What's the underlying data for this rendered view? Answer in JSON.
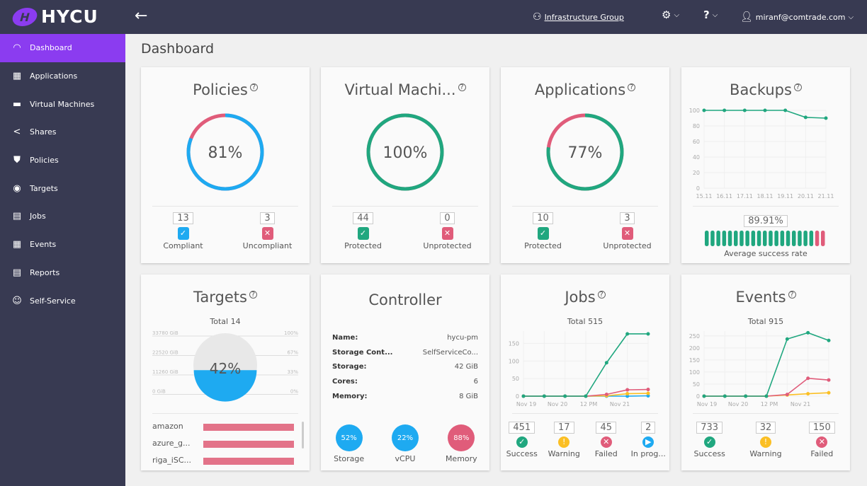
{
  "app": {
    "name": "HYCU",
    "logo_letter": "H"
  },
  "topbar": {
    "group": "Infrastructure Group",
    "user": "miranf@comtrade.com",
    "help": "?"
  },
  "sidebar": {
    "items": [
      {
        "label": "Dashboard",
        "icon": "dashboard-icon",
        "g": "◠",
        "active": true
      },
      {
        "label": "Applications",
        "icon": "grid-icon",
        "g": "▦"
      },
      {
        "label": "Virtual Machines",
        "icon": "monitor-icon",
        "g": "▬"
      },
      {
        "label": "Shares",
        "icon": "share-icon",
        "g": "<"
      },
      {
        "label": "Policies",
        "icon": "shield-icon",
        "g": "⛊"
      },
      {
        "label": "Targets",
        "icon": "target-icon",
        "g": "◉"
      },
      {
        "label": "Jobs",
        "icon": "clipboard-icon",
        "g": "▤"
      },
      {
        "label": "Events",
        "icon": "calendar-icon",
        "g": "▦"
      },
      {
        "label": "Reports",
        "icon": "report-icon",
        "g": "▤"
      },
      {
        "label": "Self-Service",
        "icon": "self-service-icon",
        "g": "☺"
      }
    ]
  },
  "page_title": "Dashboard",
  "colors": {
    "blue": "#1eaaf1",
    "green": "#20a77f",
    "red": "#e05c7a",
    "yellow": "#fbbf24",
    "purple": "#8b3cf0"
  },
  "policies": {
    "title": "Policies",
    "percent": 81,
    "label": "81%",
    "stats": [
      {
        "n": "13",
        "label": "Compliant",
        "color": "#1eaaf1",
        "g": "✓"
      },
      {
        "n": "3",
        "label": "Uncompliant",
        "color": "#e05c7a",
        "g": "✕"
      }
    ]
  },
  "vms": {
    "title": "Virtual Machi...",
    "percent": 100,
    "label": "100%",
    "stats": [
      {
        "n": "44",
        "label": "Protected",
        "color": "#20a77f",
        "g": "✓"
      },
      {
        "n": "0",
        "label": "Unprotected",
        "color": "#e05c7a",
        "g": "✕"
      }
    ]
  },
  "apps": {
    "title": "Applications",
    "percent": 77,
    "label": "77%",
    "stats": [
      {
        "n": "10",
        "label": "Protected",
        "color": "#20a77f",
        "g": "✓"
      },
      {
        "n": "3",
        "label": "Unprotected",
        "color": "#e05c7a",
        "g": "✕"
      }
    ]
  },
  "backups": {
    "title": "Backups",
    "rate": "89.91%",
    "rate_label": "Average success rate",
    "bars_success": 19,
    "bars_failed": 2
  },
  "targets": {
    "title": "Targets",
    "total": "Total 14",
    "percent": 42,
    "label": "42%",
    "left_scale": [
      "33780 GiB",
      "22520 GiB",
      "11260 GiB",
      "0 GiB"
    ],
    "right_scale": [
      "100%",
      "67%",
      "33%",
      "0%"
    ],
    "list": [
      "amazon",
      "azure_g...",
      "riga_iSC..."
    ]
  },
  "controller": {
    "title": "Controller",
    "rows": [
      {
        "k": "Name:",
        "v": "hycu-pm"
      },
      {
        "k": "Storage Cont...",
        "v": "SelfServiceCo..."
      },
      {
        "k": "Storage:",
        "v": "42 GiB"
      },
      {
        "k": "Cores:",
        "v": "6"
      },
      {
        "k": "Memory:",
        "v": "8 GiB"
      }
    ],
    "usage": [
      {
        "label": "Storage",
        "value": "52%",
        "color": "#1eaaf1"
      },
      {
        "label": "vCPU",
        "value": "22%",
        "color": "#1eaaf1"
      },
      {
        "label": "Memory",
        "value": "88%",
        "color": "#e05c7a"
      }
    ]
  },
  "jobs": {
    "title": "Jobs",
    "total": "Total 515",
    "stats": [
      {
        "n": "451",
        "label": "Success",
        "color": "#20a77f",
        "g": "✓"
      },
      {
        "n": "17",
        "label": "Warning",
        "color": "#fbbf24",
        "g": "!"
      },
      {
        "n": "45",
        "label": "Failed",
        "color": "#e05c7a",
        "g": "✕"
      },
      {
        "n": "2",
        "label": "In prog...",
        "color": "#1eaaf1",
        "g": "▶"
      }
    ]
  },
  "events": {
    "title": "Events",
    "total": "Total 915",
    "stats": [
      {
        "n": "733",
        "label": "Success",
        "color": "#20a77f",
        "g": "✓"
      },
      {
        "n": "32",
        "label": "Warning",
        "color": "#fbbf24",
        "g": "!"
      },
      {
        "n": "150",
        "label": "Failed",
        "color": "#e05c7a",
        "g": "✕"
      }
    ]
  },
  "chart_data": [
    {
      "id": "backups",
      "type": "line",
      "x": [
        "15.11",
        "16.11",
        "17.11",
        "18.11",
        "19.11",
        "20.11",
        "21.11"
      ],
      "yticks": [
        0,
        20,
        40,
        60,
        80,
        100
      ],
      "ylim": [
        0,
        100
      ],
      "grid": true,
      "series": [
        {
          "values": [
            100,
            100,
            100,
            100,
            100,
            91,
            90
          ],
          "color": "#20a77f"
        }
      ]
    },
    {
      "id": "jobs",
      "type": "line",
      "x": [
        "Nov 19",
        "",
        "Nov 20",
        "",
        "12 PM",
        "Nov 21",
        ""
      ],
      "xtick_labels": [
        "Nov 19",
        "Nov 20",
        "12 PM",
        "Nov 21"
      ],
      "yticks": [
        0,
        50,
        100,
        150
      ],
      "ylim": [
        0,
        185
      ],
      "grid": true,
      "series": [
        {
          "name": "In progress",
          "values": [
            0,
            0,
            0,
            0,
            0,
            0,
            1
          ],
          "color": "#1eaaf1"
        },
        {
          "name": "Warning",
          "values": [
            0,
            0,
            0,
            0,
            1,
            7,
            8
          ],
          "color": "#fbbf24"
        },
        {
          "name": "Failed",
          "values": [
            0,
            0,
            0,
            0,
            5,
            18,
            19
          ],
          "color": "#e05c7a"
        },
        {
          "name": "Success",
          "values": [
            0,
            0,
            0,
            0,
            95,
            177,
            177
          ],
          "color": "#20a77f"
        }
      ]
    },
    {
      "id": "events",
      "type": "line",
      "xtick_labels": [
        "Nov 19",
        "Nov 20",
        "12 PM",
        "Nov 21"
      ],
      "yticks": [
        0,
        50,
        100,
        150,
        200,
        250
      ],
      "ylim": [
        0,
        270
      ],
      "grid": true,
      "series": [
        {
          "name": "Warning",
          "values": [
            0,
            0,
            0,
            0,
            5,
            10,
            14
          ],
          "color": "#fbbf24"
        },
        {
          "name": "Failed",
          "values": [
            0,
            0,
            0,
            0,
            7,
            74,
            67
          ],
          "color": "#e05c7a"
        },
        {
          "name": "Success",
          "values": [
            0,
            0,
            0,
            0,
            237,
            263,
            231
          ],
          "color": "#20a77f"
        }
      ]
    }
  ]
}
